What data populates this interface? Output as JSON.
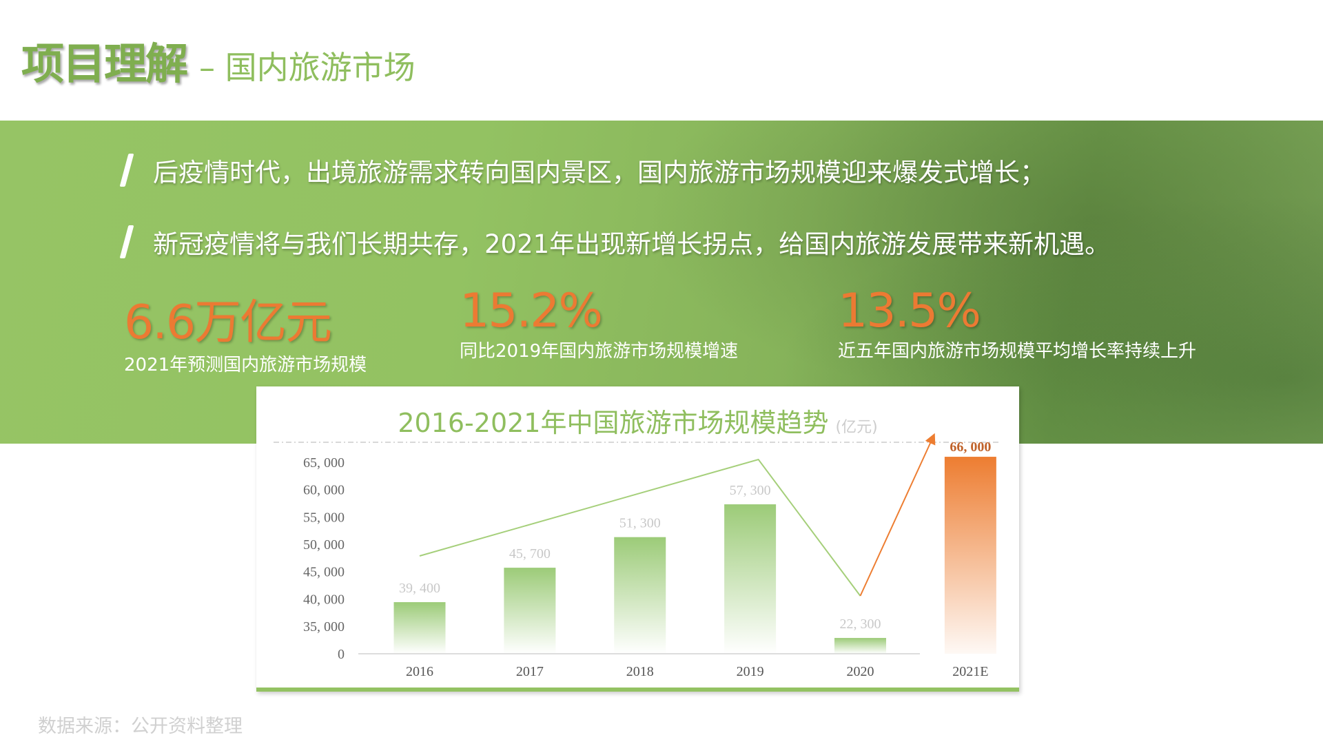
{
  "header": {
    "title": "项目理解",
    "subtitle": "– 国内旅游市场"
  },
  "bullets": [
    "后疫情时代，出境旅游需求转向国内景区，国内旅游市场规模迎来爆发式增长；",
    "新冠疫情将与我们长期共存，2021年出现新增长拐点，给国内旅游发展带来新机遇。"
  ],
  "stats": [
    {
      "value": "6.6万亿元",
      "label": "2021年预测国内旅游市场规模"
    },
    {
      "value": "15.2%",
      "label": "同比2019年国内旅游市场规模增速"
    },
    {
      "value": "13.5%",
      "label": "近五年国内旅游市场规模平均增长率持续上升"
    }
  ],
  "chart_data": {
    "type": "bar",
    "title": "2016-2021年中国旅游市场规模趋势",
    "unit": "(亿元)",
    "categories": [
      "2016",
      "2017",
      "2018",
      "2019",
      "2020",
      "2021E"
    ],
    "values": [
      39400,
      45700,
      51300,
      57300,
      22300,
      66000
    ],
    "value_labels": [
      "39, 400",
      "45, 700",
      "51, 300",
      "57, 300",
      "22, 300",
      "66, 000"
    ],
    "yticks": [
      "0",
      "35, 000",
      "40, 000",
      "45, 000",
      "50, 000",
      "55, 000",
      "60, 000",
      "65, 000"
    ],
    "ylim": [
      35000,
      65000
    ],
    "axis_break": true,
    "grid": false,
    "colors": {
      "bar": "#9ccb78",
      "highlight": "#ed7d31",
      "trend": "#a5cf7a"
    }
  },
  "footer": {
    "source": "数据来源：公开资料整理"
  }
}
